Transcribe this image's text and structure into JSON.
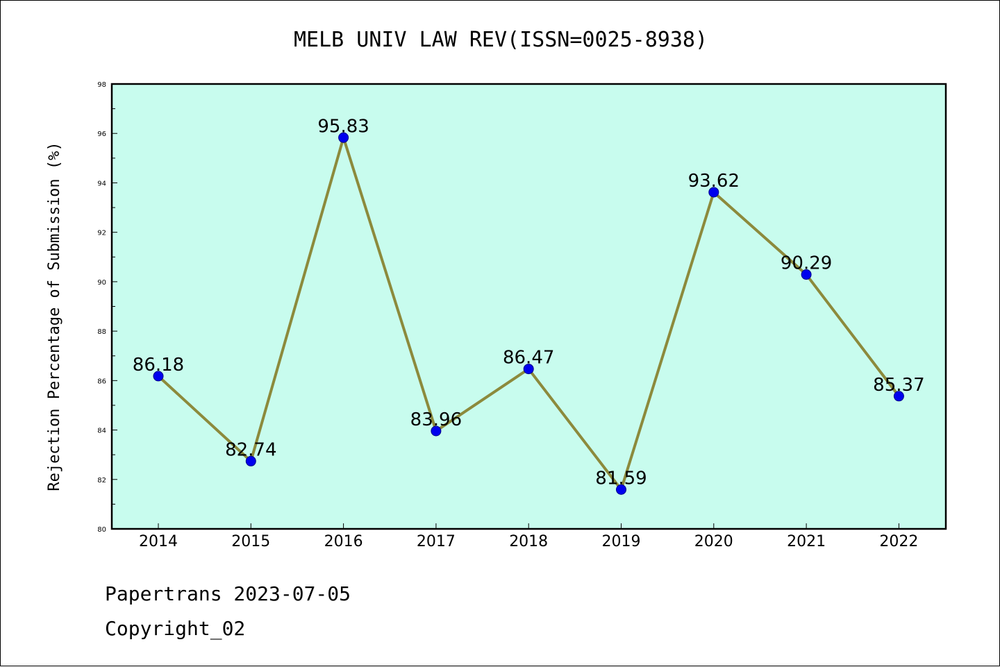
{
  "chart_data": {
    "type": "line",
    "title": "MELB UNIV LAW REV(ISSN=0025-8938)",
    "xlabel": "",
    "ylabel": "Rejection Percentage of Submission (%)",
    "categories": [
      "2014",
      "2015",
      "2016",
      "2017",
      "2018",
      "2019",
      "2020",
      "2021",
      "2022"
    ],
    "values": [
      86.18,
      82.74,
      95.83,
      83.96,
      86.47,
      81.59,
      93.62,
      90.29,
      85.37
    ],
    "data_labels": [
      "86.18",
      "82.74",
      "95.83",
      "83.96",
      "86.47",
      "81.59",
      "93.62",
      "90.29",
      "85.37"
    ],
    "ylim": [
      80,
      98
    ],
    "yticks": [
      "80",
      "82",
      "84",
      "86",
      "88",
      "90",
      "92",
      "94",
      "96",
      "98"
    ],
    "grid": false,
    "colors": {
      "plot_background": "#c8fcee",
      "line": "#8c8a3c",
      "marker": "#0000ee"
    }
  },
  "footer": {
    "line1": "Papertrans 2023-07-05",
    "line2": "Copyright_02"
  }
}
